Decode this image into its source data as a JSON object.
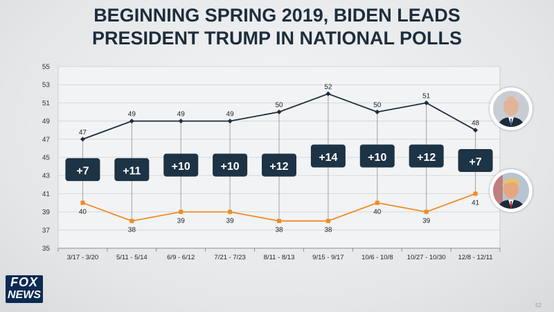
{
  "title_lines": [
    "BEGINNING SPRING 2019, BIDEN LEADS",
    "PRESIDENT TRUMP IN NATIONAL POLLS"
  ],
  "logo": {
    "line1": "FOX",
    "line2": "NEWS"
  },
  "page_number": "52",
  "colors": {
    "biden": "#1d2d3c",
    "trump": "#f08a24",
    "badge": "#1d3346",
    "plot_bg": "#f2f3f4",
    "grid": "#d4d7da"
  },
  "chart_data": {
    "type": "line",
    "title": "BEGINNING SPRING 2019, BIDEN LEADS PRESIDENT TRUMP IN NATIONAL POLLS",
    "xlabel": "",
    "ylabel": "",
    "ylim": [
      35,
      55
    ],
    "yticks": [
      35,
      37,
      39,
      41,
      43,
      45,
      47,
      49,
      51,
      53,
      55
    ],
    "categories": [
      "3/17 - 3/20",
      "5/11 - 5/14",
      "6/9 - 6/12",
      "7/21 - 7/23",
      "8/11 - 8/13",
      "9/15 - 9/17",
      "10/6 - 10/8",
      "10/27 - 10/30",
      "12/8 - 12/11"
    ],
    "series": [
      {
        "name": "Biden",
        "values": [
          47,
          49,
          49,
          49,
          50,
          52,
          50,
          51,
          48
        ]
      },
      {
        "name": "Trump",
        "values": [
          40,
          38,
          39,
          39,
          38,
          38,
          40,
          39,
          41
        ]
      }
    ],
    "margins": [
      "+7",
      "+11",
      "+10",
      "+10",
      "+12",
      "+14",
      "+10",
      "+12",
      "+7"
    ]
  }
}
